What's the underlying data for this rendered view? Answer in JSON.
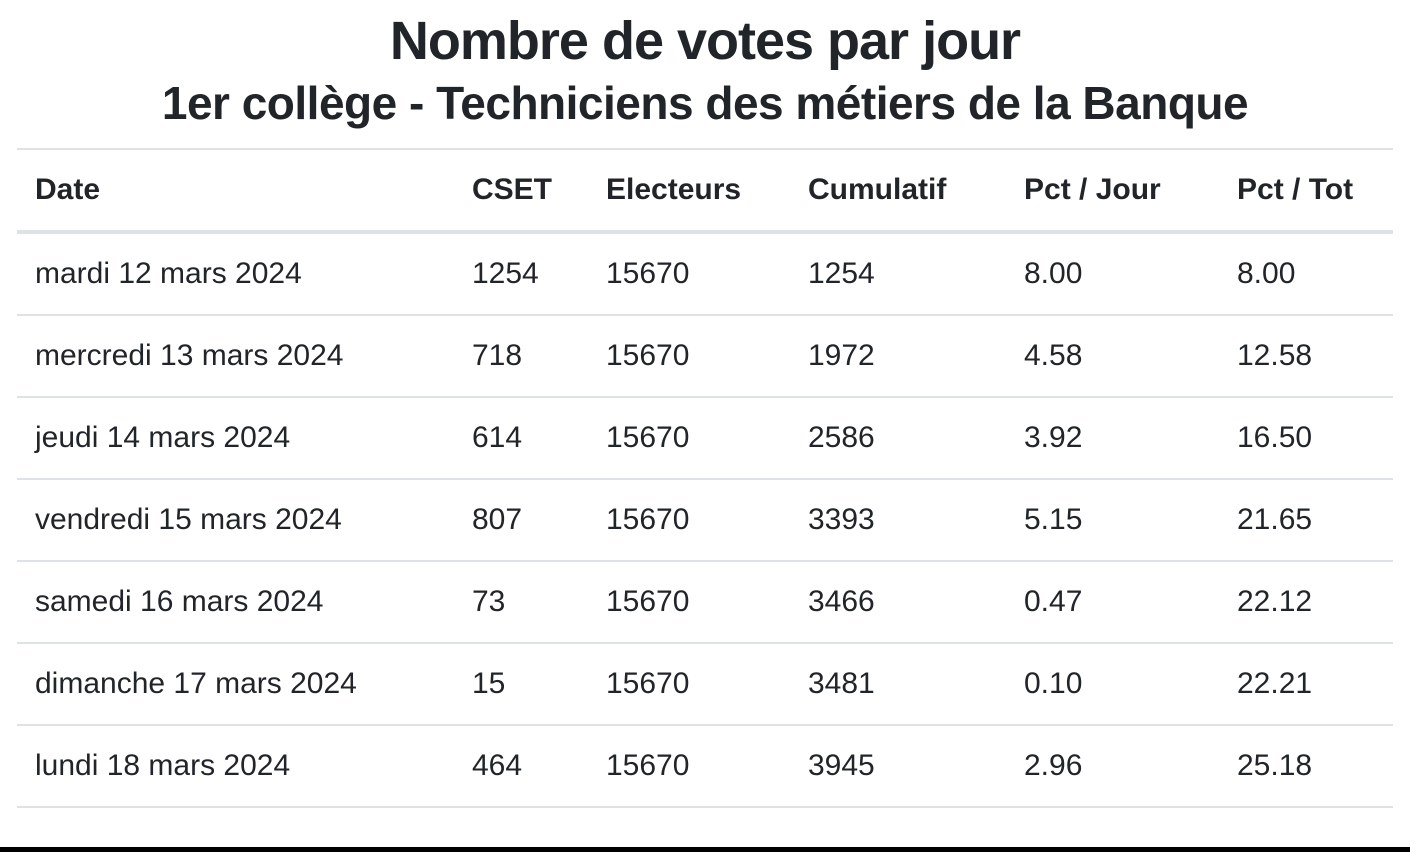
{
  "header": {
    "title": "Nombre de votes par jour",
    "subtitle": "1er collège - Techniciens des métiers de la Banque"
  },
  "table": {
    "columns": [
      "Date",
      "CSET",
      "Electeurs",
      "Cumulatif",
      "Pct / Jour",
      "Pct / Tot"
    ],
    "rows": [
      [
        "mardi 12 mars 2024",
        "1254",
        "15670",
        "1254",
        "8.00",
        "8.00"
      ],
      [
        "mercredi 13 mars 2024",
        "718",
        "15670",
        "1972",
        "4.58",
        "12.58"
      ],
      [
        "jeudi 14 mars 2024",
        "614",
        "15670",
        "2586",
        "3.92",
        "16.50"
      ],
      [
        "vendredi 15 mars 2024",
        "807",
        "15670",
        "3393",
        "5.15",
        "21.65"
      ],
      [
        "samedi 16 mars 2024",
        "73",
        "15670",
        "3466",
        "0.47",
        "22.12"
      ],
      [
        "dimanche 17 mars 2024",
        "15",
        "15670",
        "3481",
        "0.10",
        "22.21"
      ],
      [
        "lundi 18 mars 2024",
        "464",
        "15670",
        "3945",
        "2.96",
        "25.18"
      ]
    ]
  },
  "colors": {
    "text": "#212529",
    "border": "#dee2e6",
    "bottom_bar": "#000000"
  }
}
